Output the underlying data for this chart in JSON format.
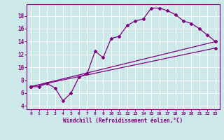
{
  "xlabel": "Windchill (Refroidissement éolien,°C)",
  "ylabel": "",
  "bg_color": "#cce8e8",
  "line_color": "#800080",
  "grid_color": "#ffffff",
  "xlim": [
    -0.5,
    23.5
  ],
  "ylim": [
    3.5,
    19.8
  ],
  "xticks": [
    0,
    1,
    2,
    3,
    4,
    5,
    6,
    7,
    8,
    9,
    10,
    11,
    12,
    13,
    14,
    15,
    16,
    17,
    18,
    19,
    20,
    21,
    22,
    23
  ],
  "yticks": [
    4,
    6,
    8,
    10,
    12,
    14,
    16,
    18
  ],
  "series": [
    {
      "x": [
        0,
        1,
        2,
        3,
        4,
        5,
        6,
        7,
        8,
        9,
        10,
        11,
        12,
        13,
        14,
        15,
        16,
        17,
        18,
        19,
        20,
        21,
        22,
        23
      ],
      "y": [
        7,
        7,
        7.5,
        6.8,
        4.8,
        6.0,
        8.5,
        9.0,
        12.5,
        11.5,
        14.5,
        14.8,
        16.5,
        17.2,
        17.5,
        19.2,
        19.2,
        18.8,
        18.2,
        17.2,
        16.8,
        16.0,
        15.0,
        14.0
      ]
    },
    {
      "x": [
        0,
        23
      ],
      "y": [
        7.0,
        14.0
      ]
    },
    {
      "x": [
        0,
        23
      ],
      "y": [
        7.0,
        13.0
      ]
    }
  ]
}
